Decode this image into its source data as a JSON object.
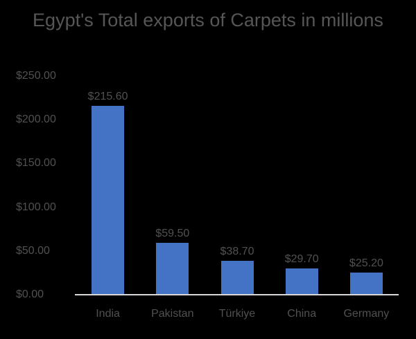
{
  "chart_data": {
    "type": "bar",
    "title": "Egypt's Total exports of Carpets in millions",
    "categories": [
      "India",
      "Pakistan",
      "Türkiye",
      "China",
      "Germany"
    ],
    "values": [
      215.6,
      59.5,
      38.7,
      29.7,
      25.2
    ],
    "data_labels": [
      "$215.60",
      "$59.50",
      "$38.70",
      "$29.70",
      "$25.20"
    ],
    "xlabel": "",
    "ylabel": "",
    "ylim": [
      0,
      250
    ],
    "yticks": [
      {
        "value": 0,
        "label": "$0.00"
      },
      {
        "value": 50,
        "label": "$50.00"
      },
      {
        "value": 100,
        "label": "$100.00"
      },
      {
        "value": 150,
        "label": "$150.00"
      },
      {
        "value": 200,
        "label": "$200.00"
      },
      {
        "value": 250,
        "label": "$250.00"
      }
    ],
    "grid": false,
    "legend": "none",
    "colors": {
      "background": "#000000",
      "bar": "#4472C4",
      "title_text": "#565656",
      "label_text": "#515151",
      "axis_line": "#D9D9D9"
    }
  }
}
